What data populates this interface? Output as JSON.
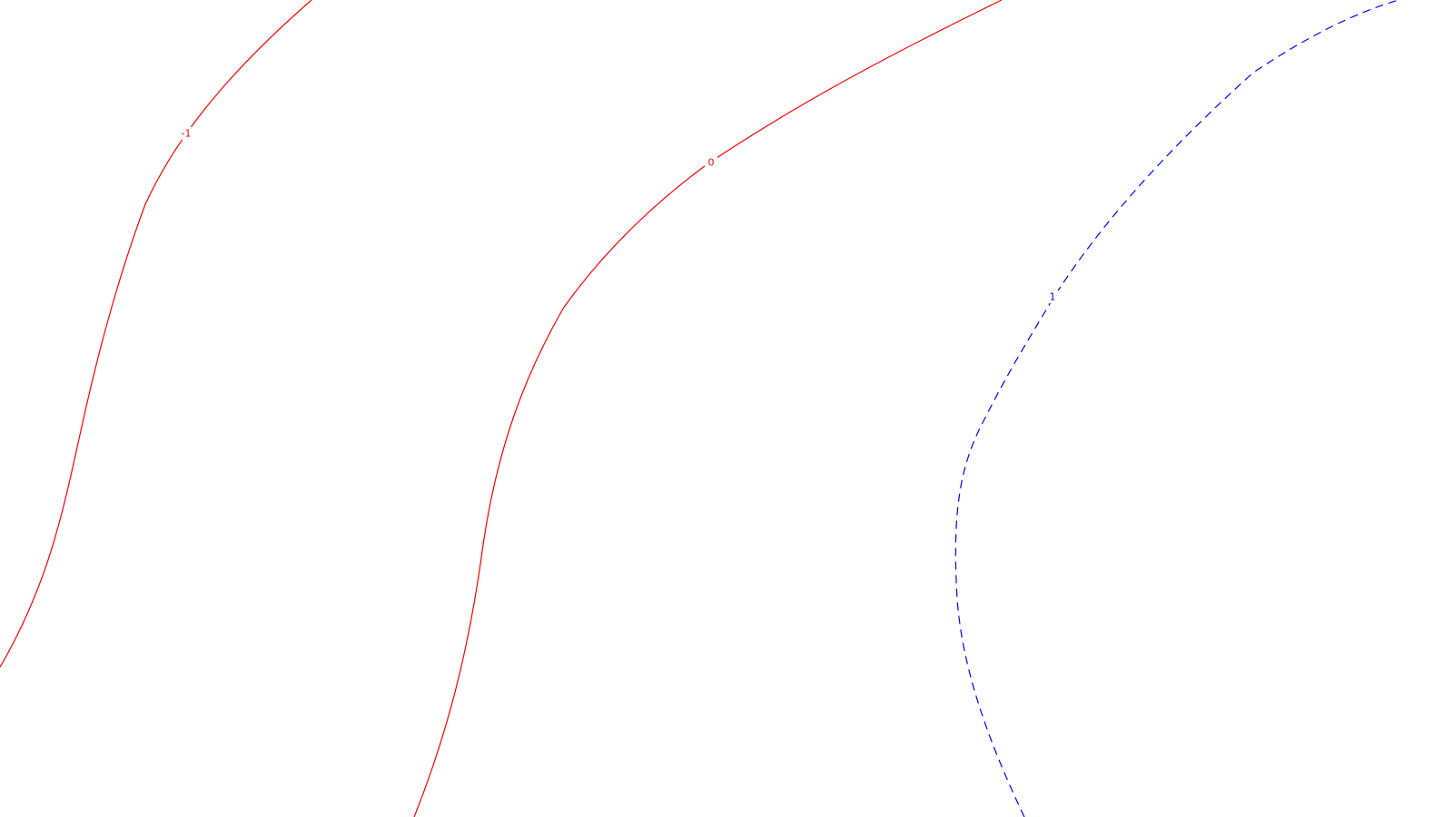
{
  "chart_data": {
    "type": "contour",
    "title": "",
    "xlabel": "",
    "ylabel": "",
    "grid": false,
    "legend": false,
    "contours": [
      {
        "level": "-1",
        "color": "#ff0000",
        "style": "solid"
      },
      {
        "level": "0",
        "color": "#ff0000",
        "style": "solid"
      },
      {
        "level": "1",
        "color": "#0000ff",
        "style": "dashed"
      }
    ]
  }
}
